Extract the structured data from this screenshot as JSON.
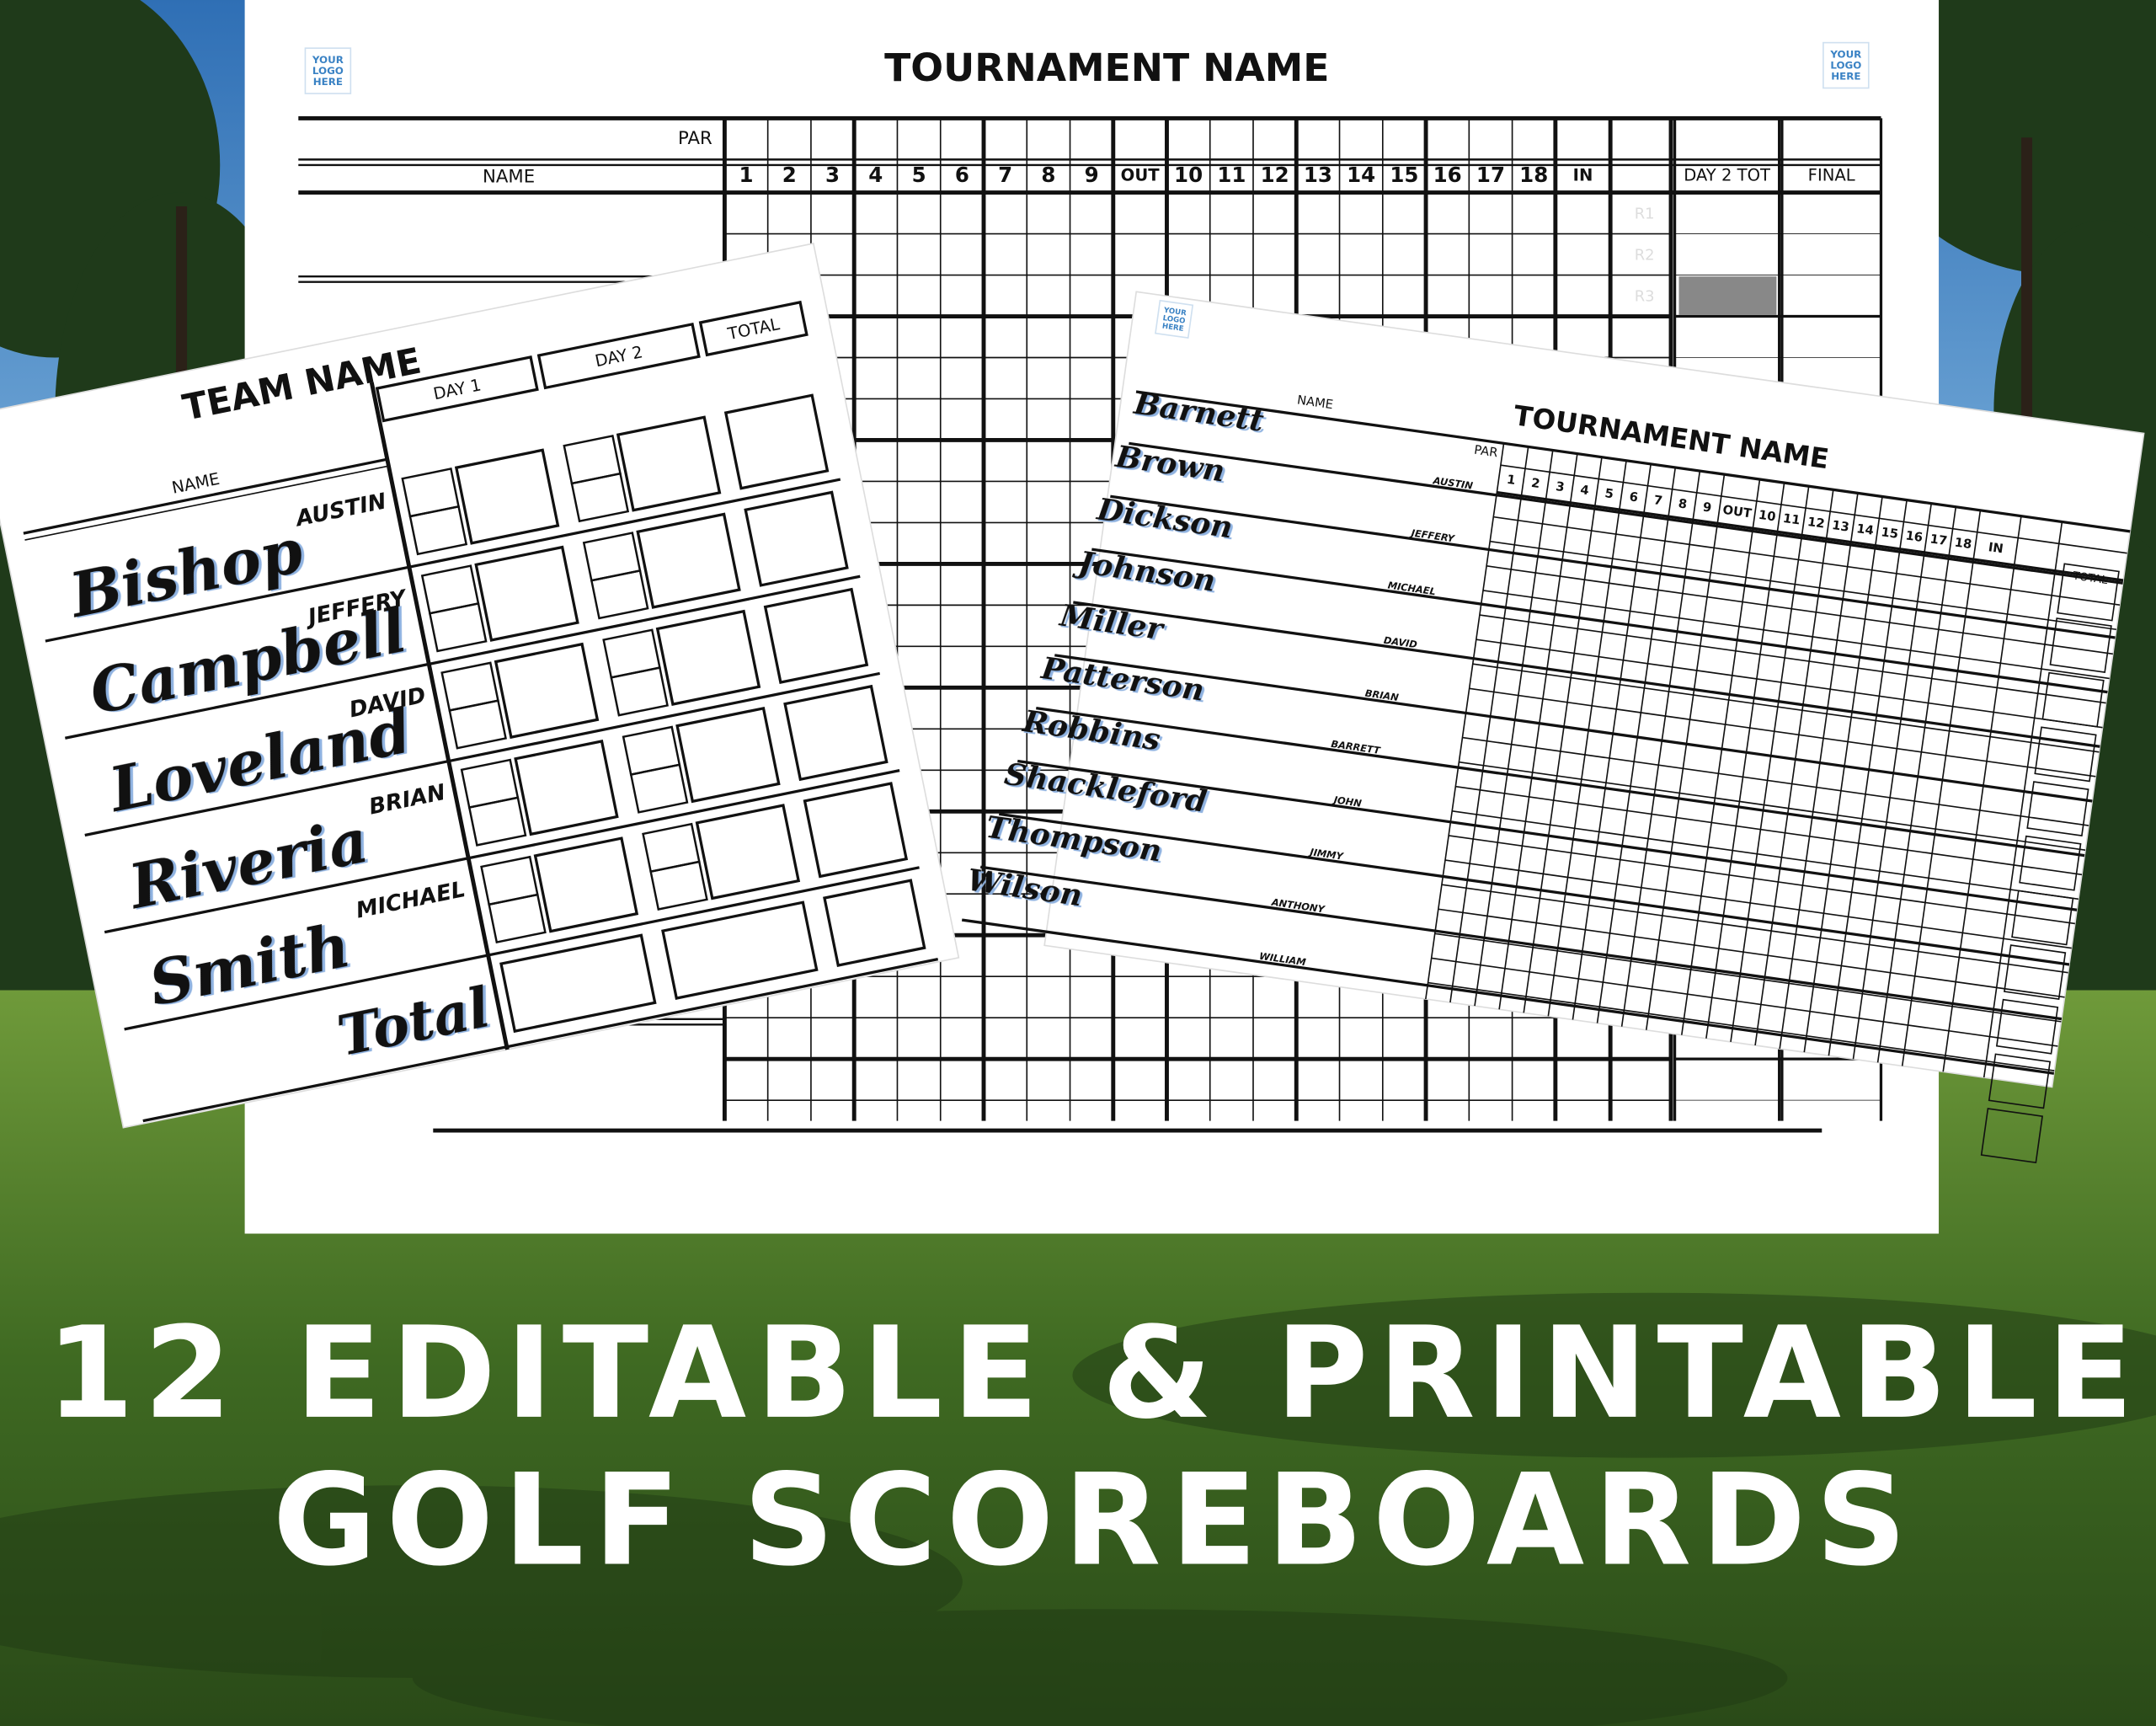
{
  "back_sheet": {
    "logo_left": [
      "YOUR",
      "LOGO",
      "HERE"
    ],
    "logo_right": [
      "YOUR",
      "LOGO",
      "HERE"
    ],
    "title": "TOURNAMENT NAME",
    "par_label": "PAR",
    "name_label": "NAME",
    "holes_front": [
      "1",
      "2",
      "3",
      "4",
      "5",
      "6",
      "7",
      "8",
      "9"
    ],
    "out_label": "OUT",
    "holes_back": [
      "10",
      "11",
      "12",
      "13",
      "14",
      "15",
      "16",
      "17",
      "18"
    ],
    "in_label": "IN",
    "day2_total_label": "DAY 2 TOT",
    "final_label": "FINAL",
    "round_labels": [
      "R1",
      "R2",
      "R3"
    ]
  },
  "team_sheet": {
    "title": "TEAM NAME",
    "name_label": "NAME",
    "day1_label": "DAY 1",
    "day2_label": "DAY 2",
    "total_label": "TOTAL",
    "players": [
      {
        "last_name": "Bishop",
        "first_name": "AUSTIN"
      },
      {
        "last_name": "Campbell",
        "first_name": "JEFFERY"
      },
      {
        "last_name": "Loveland",
        "first_name": "DAVID"
      },
      {
        "last_name": "Riveria",
        "first_name": "BRIAN"
      },
      {
        "last_name": "Smith",
        "first_name": "MICHAEL"
      }
    ],
    "total_row_label": "Total"
  },
  "tournament_sheet": {
    "logo": [
      "YOUR",
      "LOGO",
      "HERE"
    ],
    "title": "TOURNAMENT NAME",
    "name_label": "NAME",
    "par_label": "PAR",
    "holes_front": [
      "1",
      "2",
      "3",
      "4",
      "5",
      "6",
      "7",
      "8",
      "9"
    ],
    "out_label": "OUT",
    "holes_back": [
      "10",
      "11",
      "12",
      "13",
      "14",
      "15",
      "16",
      "17",
      "18"
    ],
    "in_label": "IN",
    "total_label": "TOTAL",
    "players": [
      {
        "last_name": "Barnett",
        "first_name": "AUSTIN"
      },
      {
        "last_name": "Brown",
        "first_name": "JEFFERY"
      },
      {
        "last_name": "Dickson",
        "first_name": "MICHAEL"
      },
      {
        "last_name": "Johnson",
        "first_name": "DAVID"
      },
      {
        "last_name": "Miller",
        "first_name": "BRIAN"
      },
      {
        "last_name": "Patterson",
        "first_name": "BARRETT"
      },
      {
        "last_name": "Robbins",
        "first_name": "JOHN"
      },
      {
        "last_name": "Shackleford",
        "first_name": "JIMMY"
      },
      {
        "last_name": "Thompson",
        "first_name": "ANTHONY"
      },
      {
        "last_name": "Wilson",
        "first_name": "WILLIAM"
      }
    ]
  },
  "headline": {
    "line1": "12 EDITABLE & PRINTABLE",
    "line2": "GOLF SCOREBOARDS"
  }
}
